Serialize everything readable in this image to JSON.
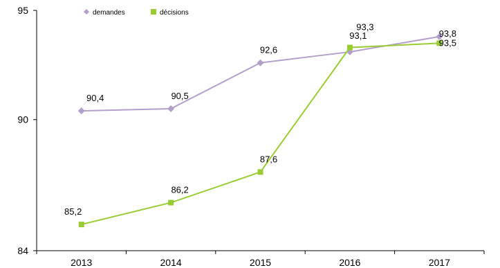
{
  "chart_data": {
    "type": "line",
    "categories": [
      "2013",
      "2014",
      "2015",
      "2016",
      "2017"
    ],
    "y_ticks": [
      "84",
      "90",
      "95"
    ],
    "ylim": [
      84,
      95
    ],
    "grid": false,
    "legend_position": "top-left",
    "series": [
      {
        "name": "demandes",
        "color": "#b49fcc",
        "marker": "diamond",
        "values": [
          90.4,
          90.5,
          92.6,
          93.1,
          93.8
        ],
        "labels": [
          "90,4",
          "90,5",
          "92,6",
          "93,1",
          "93,8"
        ]
      },
      {
        "name": "décisions",
        "color": "#99cc33",
        "marker": "square",
        "values": [
          85.2,
          86.2,
          87.6,
          93.3,
          93.5
        ],
        "labels": [
          "85,2",
          "86,2",
          "87,6",
          "93,3",
          "93,5"
        ]
      }
    ]
  }
}
